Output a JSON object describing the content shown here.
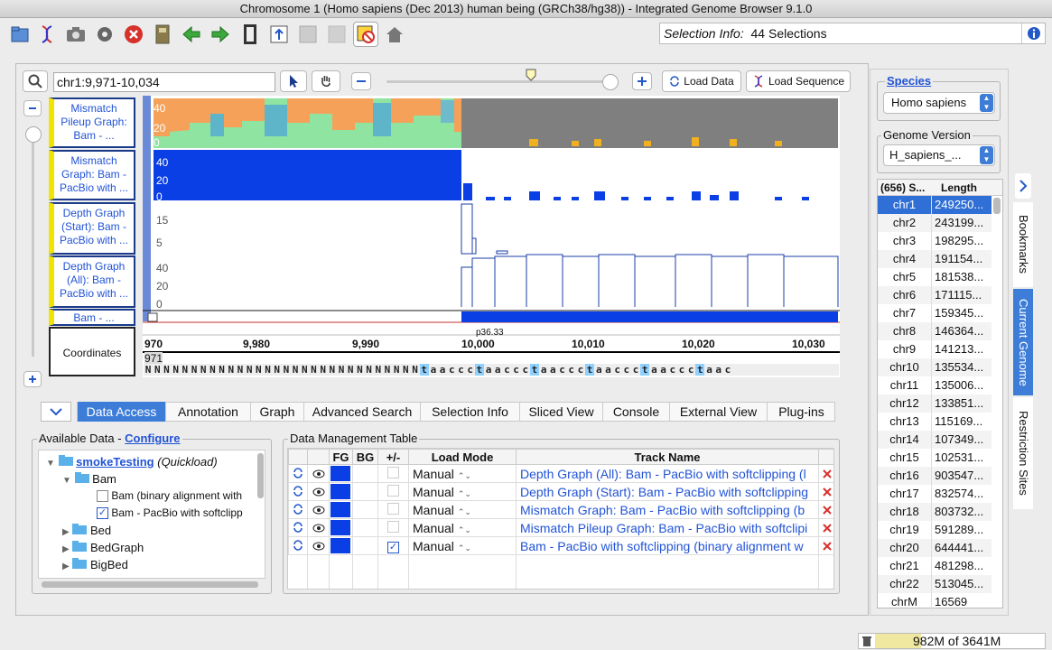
{
  "window": {
    "title": "Chromosome 1  (Homo sapiens (Dec 2013) human being (GRCh38/hg38)) - Integrated Genome Browser 9.1.0"
  },
  "toolbar": {
    "icons": [
      "open-file-icon",
      "dna-icon",
      "camera-icon",
      "gear-icon",
      "stop-icon",
      "notebook-icon",
      "back-arrow-icon",
      "forward-arrow-icon",
      "film-icon",
      "upload-icon",
      "blank-icon",
      "blank-icon",
      "clear-selection-icon",
      "home-icon"
    ]
  },
  "selection_info": {
    "label": "Selection Info:",
    "value": "44 Selections"
  },
  "nav": {
    "location": "chr1:9,971-10,034",
    "load_data": "Load Data",
    "load_sequence": "Load Sequence"
  },
  "tracks": [
    {
      "label": "Mismatch Pileup Graph: Bam - ...",
      "ticks": [
        "40",
        "20",
        "0"
      ]
    },
    {
      "label": "Mismatch Graph: Bam - PacBio with ...",
      "ticks": [
        "40",
        "20",
        "0"
      ]
    },
    {
      "label": "Depth Graph (Start): Bam - PacBio with ...",
      "ticks": [
        "15",
        "5"
      ]
    },
    {
      "label": "Depth Graph (All): Bam - PacBio with ...",
      "ticks": [
        "40",
        "20",
        "0"
      ]
    },
    {
      "label": "Bam - ..."
    }
  ],
  "coordinates": {
    "label": "Coordinates",
    "ticks": [
      "970",
      "9,980",
      "9,990",
      "10,000",
      "10,010",
      "10,020",
      "10,030"
    ],
    "band": "p36.33",
    "start": "971",
    "sequence": "NNNNNNNNNNNNNNNNNNNNNNNNNNNNNNtaaccctaaccctaaccctaaccctaaccctaac"
  },
  "tabs": [
    "Data Access",
    "Annotation",
    "Graph",
    "Advanced Search",
    "Selection Info",
    "Sliced View",
    "Console",
    "External View",
    "Plug-ins"
  ],
  "available_data": {
    "title": "Available Data - ",
    "configure": "Configure",
    "tree": [
      {
        "label": "smokeTesting",
        "suffix": "(Quickload)",
        "level": 0
      },
      {
        "label": "Bam",
        "level": 1
      },
      {
        "label": "Bam (binary alignment with",
        "level": 2,
        "checked": false
      },
      {
        "label": "Bam - PacBio with softclipp",
        "level": 2,
        "checked": true
      },
      {
        "label": "Bed",
        "level": 1
      },
      {
        "label": "BedGraph",
        "level": 1
      },
      {
        "label": "BigBed",
        "level": 1
      }
    ]
  },
  "dmt": {
    "title": "Data Management Table",
    "headers": [
      "",
      "",
      "FG",
      "BG",
      "+/-",
      "Load Mode",
      "Track Name",
      ""
    ],
    "rows": [
      {
        "mode": "Manual",
        "name": "Depth Graph (All): Bam - PacBio with softclipping (l",
        "checked": false
      },
      {
        "mode": "Manual",
        "name": "Depth Graph (Start): Bam - PacBio with softclipping",
        "checked": false
      },
      {
        "mode": "Manual",
        "name": "Mismatch Graph: Bam - PacBio with softclipping (b",
        "checked": false
      },
      {
        "mode": "Manual",
        "name": "Mismatch Pileup Graph: Bam - PacBio with softclipi",
        "checked": false
      },
      {
        "mode": "Manual",
        "name": "Bam - PacBio with softclipping (binary alignment w",
        "checked": true
      }
    ]
  },
  "species": {
    "label": "Species",
    "value": "Homo sapiens"
  },
  "genome_version": {
    "label": "Genome Version",
    "value": "H_sapiens_..."
  },
  "chrom_table": {
    "headers": [
      "(656) S...",
      "Length"
    ],
    "rows": [
      [
        "chr1",
        "249250..."
      ],
      [
        "chr2",
        "243199..."
      ],
      [
        "chr3",
        "198295..."
      ],
      [
        "chr4",
        "191154..."
      ],
      [
        "chr5",
        "181538..."
      ],
      [
        "chr6",
        "171115..."
      ],
      [
        "chr7",
        "159345..."
      ],
      [
        "chr8",
        "146364..."
      ],
      [
        "chr9",
        "141213..."
      ],
      [
        "chr10",
        "135534..."
      ],
      [
        "chr11",
        "135006..."
      ],
      [
        "chr12",
        "133851..."
      ],
      [
        "chr13",
        "115169..."
      ],
      [
        "chr14",
        "107349..."
      ],
      [
        "chr15",
        "102531..."
      ],
      [
        "chr16",
        "903547..."
      ],
      [
        "chr17",
        "832574..."
      ],
      [
        "chr18",
        "803732..."
      ],
      [
        "chr19",
        "591289..."
      ],
      [
        "chr20",
        "644441..."
      ],
      [
        "chr21",
        "481298..."
      ],
      [
        "chr22",
        "513045..."
      ],
      [
        "chrM",
        "16569"
      ]
    ]
  },
  "side_tabs": [
    "Bookmarks",
    "Current Genome",
    "Restriction Sites"
  ],
  "memory": "982M of 3641M",
  "colors": {
    "accent": "#2153d6",
    "graph_blue": "#0a3fe6",
    "tab_selected": "#3d7dd8"
  }
}
